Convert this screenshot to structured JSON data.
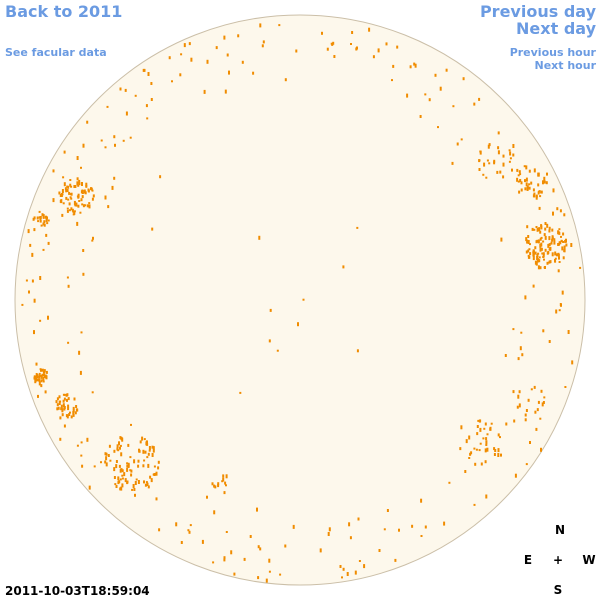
{
  "nav": {
    "back": "Back to 2011",
    "facular": "See facular data",
    "previous_day": "Previous day",
    "next_day": "Next day",
    "previous_hour": "Previous hour",
    "next_hour": "Next hour"
  },
  "timestamp": "2011-10-03T18:59:04",
  "compass": {
    "north": "N",
    "east": "E",
    "center": "+",
    "west": "W",
    "south": "S"
  }
}
